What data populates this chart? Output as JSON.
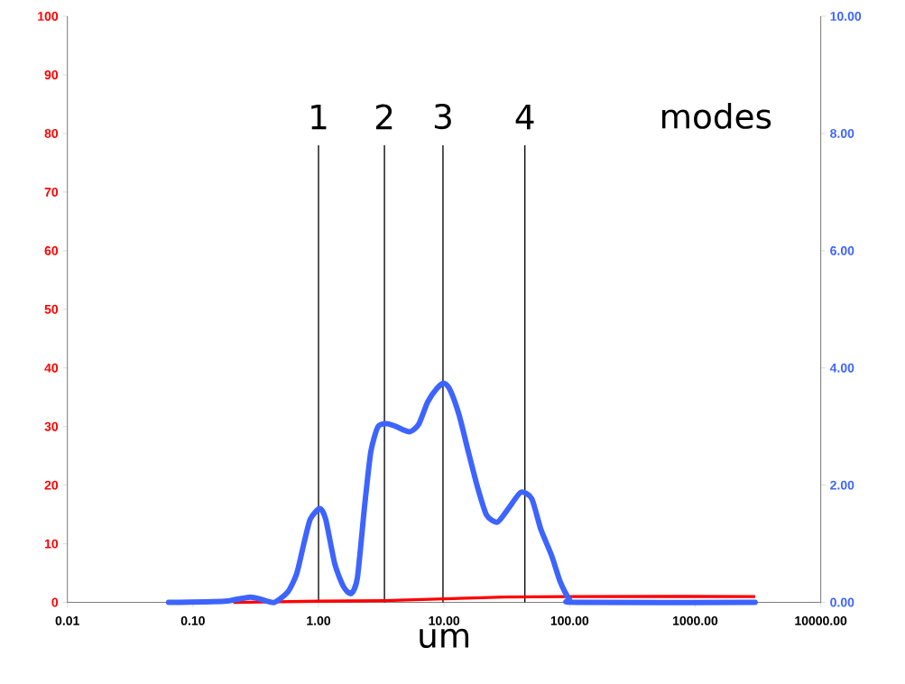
{
  "chart_data": {
    "type": "line",
    "xlabel": "um",
    "log": "x",
    "xlim": [
      0.01,
      10000
    ],
    "ylim": [
      0,
      100
    ],
    "y2lim": [
      0,
      10
    ],
    "xticks": [
      {
        "value": 0.01,
        "label": "0.01"
      },
      {
        "value": 0.1,
        "label": "0.10"
      },
      {
        "value": 1,
        "label": "1.00"
      },
      {
        "value": 10,
        "label": "10.00"
      },
      {
        "value": 100,
        "label": "100.00"
      },
      {
        "value": 1000,
        "label": "1000.00"
      },
      {
        "value": 10000,
        "label": "10000.00"
      }
    ],
    "yticks": [
      0,
      10,
      20,
      30,
      40,
      50,
      60,
      70,
      80,
      90,
      100
    ],
    "y2ticks": [
      {
        "value": 0,
        "label": "0.00"
      },
      {
        "value": 2,
        "label": "2.00"
      },
      {
        "value": 4,
        "label": "4.00"
      },
      {
        "value": 6,
        "label": "6.00"
      },
      {
        "value": 8,
        "label": "8.00"
      },
      {
        "value": 10,
        "label": "10.00"
      }
    ],
    "grid": false,
    "marker": "none",
    "line_style": "solid",
    "series": [
      {
        "color": "#ff0000",
        "axis": "y",
        "x": [
          0.21,
          1,
          3.35,
          10,
          30,
          100,
          3000
        ],
        "values": [
          0,
          0.2,
          0.3,
          0.6,
          0.9,
          1.0,
          1.0
        ]
      },
      {
        "color": "#3d64ff",
        "axis": "y2",
        "x": [
          0.064,
          0.179,
          0.284,
          0.35,
          0.444,
          0.57,
          0.67,
          0.77,
          0.86,
          1.02,
          1.14,
          1.35,
          1.59,
          1.82,
          2.04,
          2.33,
          2.61,
          2.98,
          3.52,
          4.15,
          5.32,
          6.28,
          7.41,
          8.76,
          10.0,
          11.2,
          13.2,
          15.6,
          18.5,
          21.8,
          26.6,
          33.0,
          40.9,
          49.9,
          58.7,
          71.8,
          84.5,
          99.5,
          114,
          3000
        ],
        "values": [
          0,
          0.02,
          0.09,
          0.05,
          0,
          0.18,
          0.49,
          1.03,
          1.42,
          1.6,
          1.42,
          0.65,
          0.26,
          0.15,
          0.42,
          1.65,
          2.57,
          3.0,
          3.05,
          3.0,
          2.91,
          3.04,
          3.42,
          3.65,
          3.74,
          3.62,
          3.19,
          2.57,
          1.96,
          1.49,
          1.37,
          1.62,
          1.88,
          1.77,
          1.26,
          0.8,
          0.34,
          0.05,
          0,
          0
        ]
      }
    ],
    "ref_lines": [
      {
        "axis": "x",
        "value": 1.0,
        "color": "#000000"
      },
      {
        "axis": "x",
        "value": 3.35,
        "color": "#000000"
      },
      {
        "axis": "x",
        "value": 9.8,
        "color": "#000000"
      },
      {
        "axis": "x",
        "value": 44,
        "color": "#000000"
      }
    ],
    "annotations": [
      "1",
      "2",
      "3",
      "4",
      "modes"
    ]
  }
}
